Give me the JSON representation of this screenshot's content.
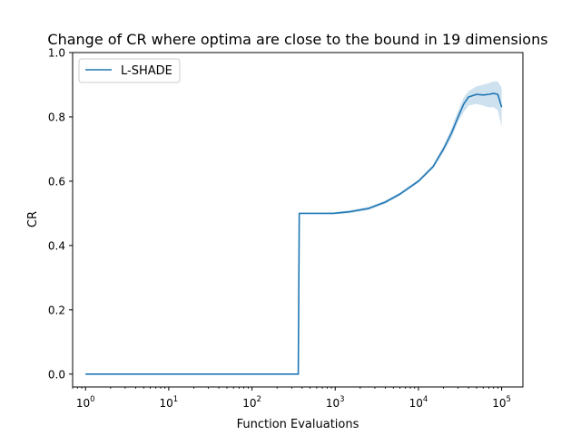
{
  "chart_data": {
    "type": "line",
    "title": "Change of CR where optima are close to the bound in 19 dimensions",
    "xlabel": "Function Evaluations",
    "ylabel": "CR",
    "xscale": "log",
    "xlim": [
      0.7,
      180000
    ],
    "ylim": [
      -0.04,
      1.0
    ],
    "x_ticks": [
      1,
      10,
      100,
      1000,
      10000,
      100000
    ],
    "x_tick_labels": [
      {
        "base": "10",
        "exp": "0"
      },
      {
        "base": "10",
        "exp": "1"
      },
      {
        "base": "10",
        "exp": "2"
      },
      {
        "base": "10",
        "exp": "3"
      },
      {
        "base": "10",
        "exp": "4"
      },
      {
        "base": "10",
        "exp": "5"
      }
    ],
    "y_ticks": [
      0.0,
      0.2,
      0.4,
      0.6,
      0.8,
      1.0
    ],
    "y_tick_labels": [
      "0.0",
      "0.2",
      "0.4",
      "0.6",
      "0.8",
      "1.0"
    ],
    "grid": false,
    "legend_position": "top-left",
    "series": [
      {
        "name": "L-SHADE",
        "color": "#1f77b4",
        "band_color": "#1f77b4",
        "points": [
          {
            "x": 1,
            "y": 0.0,
            "lo": 0.0,
            "hi": 0.0
          },
          {
            "x": 360,
            "y": 0.0,
            "lo": 0.0,
            "hi": 0.0
          },
          {
            "x": 370,
            "y": 0.5,
            "lo": 0.5,
            "hi": 0.5
          },
          {
            "x": 950,
            "y": 0.5,
            "lo": 0.497,
            "hi": 0.503
          },
          {
            "x": 1500,
            "y": 0.505,
            "lo": 0.5,
            "hi": 0.51
          },
          {
            "x": 2500,
            "y": 0.515,
            "lo": 0.51,
            "hi": 0.52
          },
          {
            "x": 4000,
            "y": 0.535,
            "lo": 0.53,
            "hi": 0.54
          },
          {
            "x": 6000,
            "y": 0.56,
            "lo": 0.555,
            "hi": 0.565
          },
          {
            "x": 10000,
            "y": 0.6,
            "lo": 0.595,
            "hi": 0.605
          },
          {
            "x": 15000,
            "y": 0.645,
            "lo": 0.64,
            "hi": 0.652
          },
          {
            "x": 20000,
            "y": 0.7,
            "lo": 0.69,
            "hi": 0.71
          },
          {
            "x": 25000,
            "y": 0.75,
            "lo": 0.735,
            "hi": 0.765
          },
          {
            "x": 30000,
            "y": 0.8,
            "lo": 0.785,
            "hi": 0.82
          },
          {
            "x": 35000,
            "y": 0.84,
            "lo": 0.815,
            "hi": 0.86
          },
          {
            "x": 40000,
            "y": 0.862,
            "lo": 0.835,
            "hi": 0.88
          },
          {
            "x": 50000,
            "y": 0.87,
            "lo": 0.84,
            "hi": 0.895
          },
          {
            "x": 60000,
            "y": 0.868,
            "lo": 0.835,
            "hi": 0.9
          },
          {
            "x": 70000,
            "y": 0.87,
            "lo": 0.83,
            "hi": 0.905
          },
          {
            "x": 80000,
            "y": 0.873,
            "lo": 0.83,
            "hi": 0.91
          },
          {
            "x": 90000,
            "y": 0.87,
            "lo": 0.82,
            "hi": 0.91
          },
          {
            "x": 100000,
            "y": 0.83,
            "lo": 0.77,
            "hi": 0.89
          }
        ]
      }
    ]
  }
}
